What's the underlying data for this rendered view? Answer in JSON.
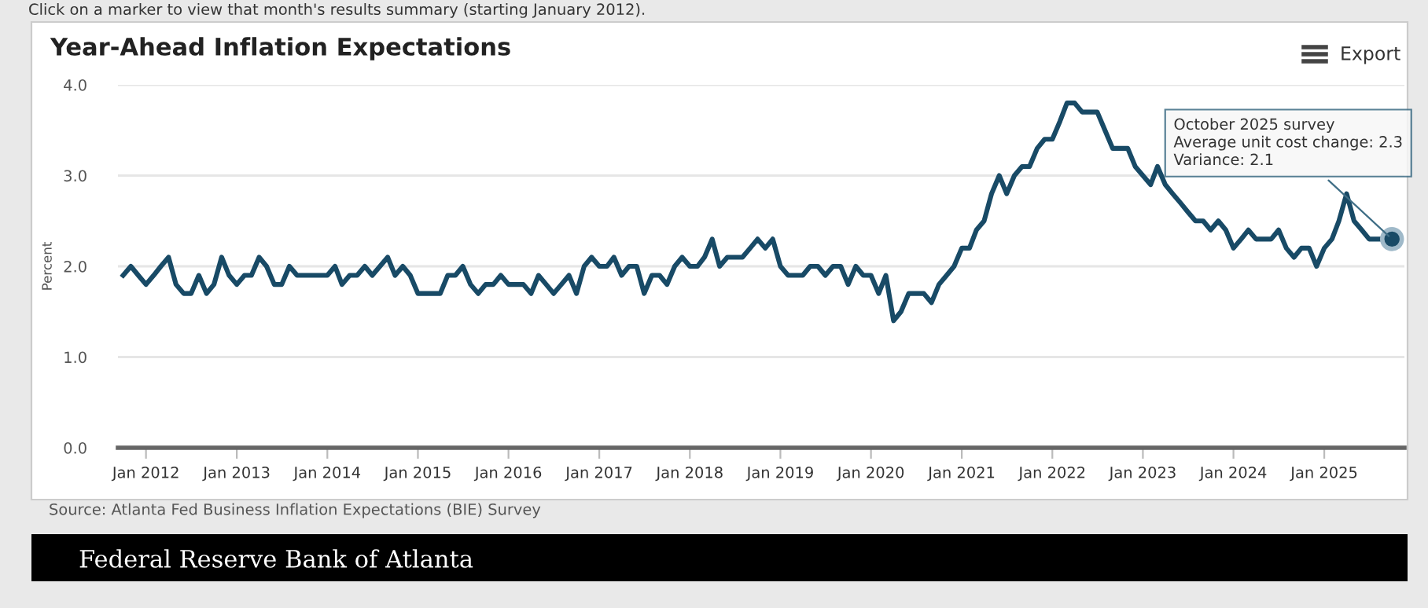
{
  "chart_data": {
    "type": "line",
    "title": "Year-Ahead Inflation Expectations",
    "ylabel": "Percent",
    "x": [
      "2011-10",
      "2011-11",
      "2011-12",
      "2012-01",
      "2012-02",
      "2012-03",
      "2012-04",
      "2012-05",
      "2012-06",
      "2012-07",
      "2012-08",
      "2012-09",
      "2012-10",
      "2012-11",
      "2012-12",
      "2013-01",
      "2013-02",
      "2013-03",
      "2013-04",
      "2013-05",
      "2013-06",
      "2013-07",
      "2013-08",
      "2013-09",
      "2013-10",
      "2013-11",
      "2013-12",
      "2014-01",
      "2014-02",
      "2014-03",
      "2014-04",
      "2014-05",
      "2014-06",
      "2014-07",
      "2014-08",
      "2014-09",
      "2014-10",
      "2014-11",
      "2014-12",
      "2015-01",
      "2015-02",
      "2015-03",
      "2015-04",
      "2015-05",
      "2015-06",
      "2015-07",
      "2015-08",
      "2015-09",
      "2015-10",
      "2015-11",
      "2015-12",
      "2016-01",
      "2016-02",
      "2016-03",
      "2016-04",
      "2016-05",
      "2016-06",
      "2016-07",
      "2016-08",
      "2016-09",
      "2016-10",
      "2016-11",
      "2016-12",
      "2017-01",
      "2017-02",
      "2017-03",
      "2017-04",
      "2017-05",
      "2017-06",
      "2017-07",
      "2017-08",
      "2017-09",
      "2017-10",
      "2017-11",
      "2017-12",
      "2018-01",
      "2018-02",
      "2018-03",
      "2018-04",
      "2018-05",
      "2018-06",
      "2018-07",
      "2018-08",
      "2018-09",
      "2018-10",
      "2018-11",
      "2018-12",
      "2019-01",
      "2019-02",
      "2019-03",
      "2019-04",
      "2019-05",
      "2019-06",
      "2019-07",
      "2019-08",
      "2019-09",
      "2019-10",
      "2019-11",
      "2019-12",
      "2020-01",
      "2020-02",
      "2020-03",
      "2020-04",
      "2020-05",
      "2020-06",
      "2020-07",
      "2020-08",
      "2020-09",
      "2020-10",
      "2020-11",
      "2020-12",
      "2021-01",
      "2021-02",
      "2021-03",
      "2021-04",
      "2021-05",
      "2021-06",
      "2021-07",
      "2021-08",
      "2021-09",
      "2021-10",
      "2021-11",
      "2021-12",
      "2022-01",
      "2022-02",
      "2022-03",
      "2022-04",
      "2022-05",
      "2022-06",
      "2022-07",
      "2022-08",
      "2022-09",
      "2022-10",
      "2022-11",
      "2022-12",
      "2023-01",
      "2023-02",
      "2023-03",
      "2023-04",
      "2023-05",
      "2023-06",
      "2023-07",
      "2023-08",
      "2023-09",
      "2023-10",
      "2023-11",
      "2023-12",
      "2024-01",
      "2024-02",
      "2024-03",
      "2024-04",
      "2024-05",
      "2024-06",
      "2024-07",
      "2024-08",
      "2024-09",
      "2024-10",
      "2024-11",
      "2024-12",
      "2025-01",
      "2025-02",
      "2025-03",
      "2025-04",
      "2025-05",
      "2025-06",
      "2025-07",
      "2025-08",
      "2025-09",
      "2025-10"
    ],
    "series": [
      {
        "color": "#184a66",
        "values": [
          1.9,
          2.0,
          1.9,
          1.8,
          1.9,
          2.0,
          2.1,
          1.8,
          1.7,
          1.7,
          1.9,
          1.7,
          1.8,
          2.1,
          1.9,
          1.8,
          1.9,
          1.9,
          2.1,
          2.0,
          1.8,
          1.8,
          2.0,
          1.9,
          1.9,
          1.9,
          1.9,
          1.9,
          2.0,
          1.8,
          1.9,
          1.9,
          2.0,
          1.9,
          2.0,
          2.1,
          1.9,
          2.0,
          1.9,
          1.7,
          1.7,
          1.7,
          1.7,
          1.9,
          1.9,
          2.0,
          1.8,
          1.7,
          1.8,
          1.8,
          1.9,
          1.8,
          1.8,
          1.8,
          1.7,
          1.9,
          1.8,
          1.7,
          1.8,
          1.9,
          1.7,
          2.0,
          2.1,
          2.0,
          2.0,
          2.1,
          1.9,
          2.0,
          2.0,
          1.7,
          1.9,
          1.9,
          1.8,
          2.0,
          2.1,
          2.0,
          2.0,
          2.1,
          2.3,
          2.0,
          2.1,
          2.1,
          2.1,
          2.2,
          2.3,
          2.2,
          2.3,
          2.0,
          1.9,
          1.9,
          1.9,
          2.0,
          2.0,
          1.9,
          2.0,
          2.0,
          1.8,
          2.0,
          1.9,
          1.9,
          1.7,
          1.9,
          1.4,
          1.5,
          1.7,
          1.7,
          1.7,
          1.6,
          1.8,
          1.9,
          2.0,
          2.2,
          2.2,
          2.4,
          2.5,
          2.8,
          3.0,
          2.8,
          3.0,
          3.1,
          3.1,
          3.3,
          3.4,
          3.4,
          3.6,
          3.8,
          3.8,
          3.7,
          3.7,
          3.7,
          3.5,
          3.3,
          3.3,
          3.3,
          3.1,
          3.0,
          2.9,
          3.1,
          2.9,
          2.8,
          2.7,
          2.6,
          2.5,
          2.5,
          2.4,
          2.5,
          2.4,
          2.2,
          2.3,
          2.4,
          2.3,
          2.3,
          2.3,
          2.4,
          2.2,
          2.1,
          2.2,
          2.2,
          2.0,
          2.2,
          2.3,
          2.5,
          2.8,
          2.5,
          2.4,
          2.3,
          2.3,
          2.3,
          2.3
        ]
      }
    ],
    "xlim": [
      "2011-09-10",
      "2025-11-20"
    ],
    "xticks": [
      {
        "value": "2012-01",
        "label": "Jan 2012"
      },
      {
        "value": "2013-01",
        "label": "Jan 2013"
      },
      {
        "value": "2014-01",
        "label": "Jan 2014"
      },
      {
        "value": "2015-01",
        "label": "Jan 2015"
      },
      {
        "value": "2016-01",
        "label": "Jan 2016"
      },
      {
        "value": "2017-01",
        "label": "Jan 2017"
      },
      {
        "value": "2018-01",
        "label": "Jan 2018"
      },
      {
        "value": "2019-01",
        "label": "Jan 2019"
      },
      {
        "value": "2020-01",
        "label": "Jan 2020"
      },
      {
        "value": "2021-01",
        "label": "Jan 2021"
      },
      {
        "value": "2022-01",
        "label": "Jan 2022"
      },
      {
        "value": "2023-01",
        "label": "Jan 2023"
      },
      {
        "value": "2024-01",
        "label": "Jan 2024"
      },
      {
        "value": "2025-01",
        "label": "Jan 2025"
      }
    ],
    "ylim": [
      0,
      4
    ],
    "yticks": [
      {
        "value": 0,
        "label": "0.0"
      },
      {
        "value": 1,
        "label": "1.0"
      },
      {
        "value": 2,
        "label": "2.0"
      },
      {
        "value": 3,
        "label": "3.0"
      },
      {
        "value": 4,
        "label": "4.0"
      }
    ],
    "grid": "y",
    "marker": "none",
    "line_style": "solid",
    "annotations": [
      "Click on a marker to view that month's results summary (starting January 2012).",
      {
        "text": "October 2025 survey\nAverage unit cost change: 2.3\nVariance: 2.1",
        "x": "2025-10",
        "y": 2.3
      },
      "Export",
      "Source: Atlanta Fed Business Inflation Expectations (BIE) Survey",
      "Federal Reserve Bank of Atlanta"
    ]
  }
}
